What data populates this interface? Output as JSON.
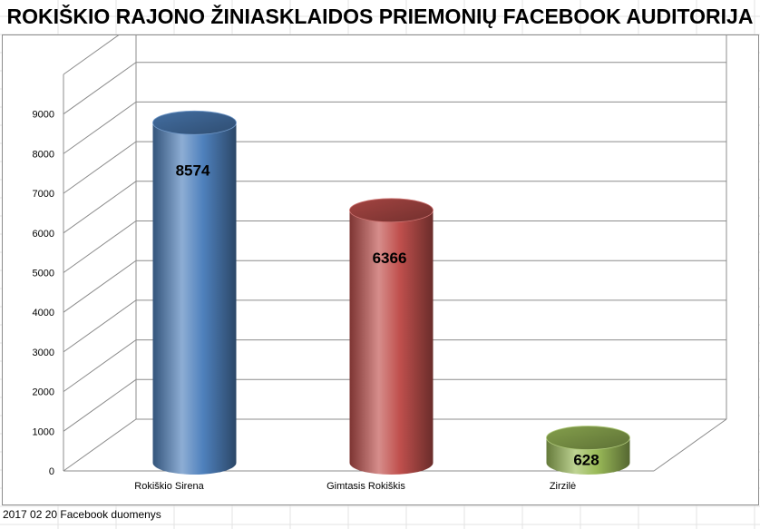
{
  "chart_data": {
    "type": "bar",
    "style": "3d-cylinder",
    "title": "ROKIŠKIO RAJONO ŽINIASKLAIDOS PRIEMONIŲ FACEBOOK AUDITORIJA",
    "categories": [
      "Rokiškio Sirena",
      "Gimtasis Rokiškis",
      "Zirzilė"
    ],
    "values": [
      8574,
      6366,
      628
    ],
    "data_labels": [
      "8574",
      "6366",
      "628"
    ],
    "colors": [
      "#4f81bd",
      "#c0504d",
      "#9bbb59"
    ],
    "yticks": [
      "0",
      "1000",
      "2000",
      "3000",
      "4000",
      "5000",
      "6000",
      "7000",
      "8000",
      "9000"
    ],
    "ylim": [
      0,
      10000
    ],
    "grid": true,
    "legend": "none"
  },
  "footnote": "2017 02 20 Facebook duomenys"
}
